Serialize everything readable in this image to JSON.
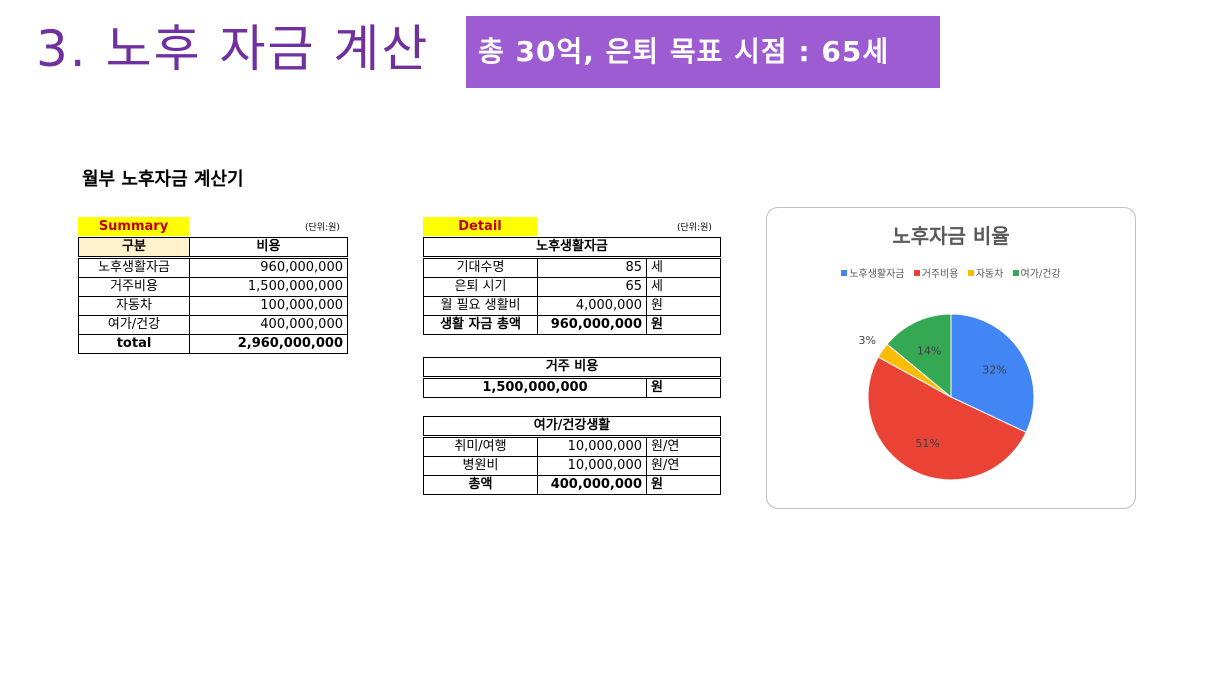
{
  "title": "3. 노후 자금 계산",
  "goal_banner": "총 30억, 은퇴 목표 시점  : 65세",
  "calculator_title": "월부 노후자금 계산기",
  "summary": {
    "tag": "Summary",
    "unit": "(단위:원)",
    "header": [
      "구분",
      "비용"
    ],
    "rows": [
      {
        "label": "노후생활자금",
        "value": "960,000,000"
      },
      {
        "label": "거주비용",
        "value": "1,500,000,000"
      },
      {
        "label": "자동차",
        "value": "100,000,000"
      },
      {
        "label": "여가/건강",
        "value": "400,000,000"
      }
    ],
    "total": {
      "label": "total",
      "value": "2,960,000,000"
    }
  },
  "detail": {
    "tag": "Detail",
    "unit": "(단위:원)",
    "living": {
      "title": "노후생활자금",
      "rows": [
        {
          "label": "기대수명",
          "value": "85",
          "unit": "세"
        },
        {
          "label": "은퇴 시기",
          "value": "65",
          "unit": "세"
        },
        {
          "label": "월 필요 생활비",
          "value": "4,000,000",
          "unit": "원"
        }
      ],
      "total": {
        "label": "생활 자금 총액",
        "value": "960,000,000",
        "unit": "원"
      }
    },
    "housing": {
      "title": "거주 비용",
      "value": "1,500,000,000",
      "unit": "원"
    },
    "leisure": {
      "title": "여가/건강생활",
      "rows": [
        {
          "label": "취미/여행",
          "value": "10,000,000",
          "unit": "원/연"
        },
        {
          "label": "병원비",
          "value": "10,000,000",
          "unit": "원/연"
        }
      ],
      "total": {
        "label": "총액",
        "value": "400,000,000",
        "unit": "원"
      }
    }
  },
  "chart_data": {
    "type": "pie",
    "title": "노후자금 비율",
    "legend_position": "top",
    "slices": [
      {
        "name": "노후생활자금",
        "value": 32,
        "label": "32%",
        "color": "#4285f4"
      },
      {
        "name": "거주비용",
        "value": 51,
        "label": "51%",
        "color": "#ea4335"
      },
      {
        "name": "자동차",
        "value": 3,
        "label": "3%",
        "color": "#fbbc04"
      },
      {
        "name": "여가/건강",
        "value": 14,
        "label": "14%",
        "color": "#34a853"
      }
    ]
  },
  "colors": {
    "title": "#7030a0",
    "banner_bg": "#9d5cd1",
    "tag_bg": "#ffff00",
    "tag_text": "#c00000"
  }
}
